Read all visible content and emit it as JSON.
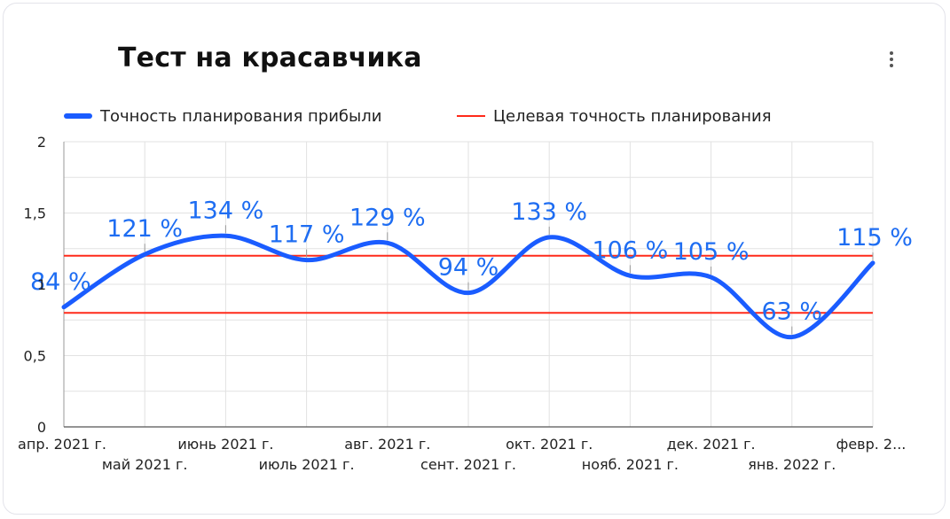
{
  "header": {
    "title": "Тест на красавчика",
    "menu_icon": "more-vert-icon"
  },
  "legend": {
    "items": [
      {
        "label": "Точность планирования прибыли",
        "color": "#1a5cff"
      },
      {
        "label": "Целевая точность планирования",
        "color": "#ff2a1a"
      }
    ]
  },
  "chart_data": {
    "type": "line",
    "title": "Тест на красавчика",
    "categories": [
      "апр. 2021 г.",
      "май 2021 г.",
      "июнь 2021 г.",
      "июль 2021 г.",
      "авг. 2021 г.",
      "сент. 2021 г.",
      "окт. 2021 г.",
      "нояб. 2021 г.",
      "дек. 2021 г.",
      "янв. 2022 г.",
      "февр. 2..."
    ],
    "series": [
      {
        "name": "Точность планирования прибыли",
        "color": "#1a5cff",
        "values": [
          0.84,
          1.21,
          1.34,
          1.17,
          1.29,
          0.94,
          1.33,
          1.06,
          1.05,
          0.63,
          1.15
        ],
        "data_labels": [
          "84 %",
          "121 %",
          "134 %",
          "117 %",
          "129 %",
          "94 %",
          "133 %",
          "106 %",
          "105 %",
          "63 %",
          "115 %"
        ]
      }
    ],
    "reference_lines": [
      {
        "name": "Целевая точность планирования",
        "color": "#ff2a1a",
        "values": [
          1.2,
          0.8
        ]
      }
    ],
    "y_ticks": [
      "0",
      "0,5",
      "1",
      "1,5",
      "2"
    ],
    "ylim": [
      0,
      2
    ],
    "grid": true,
    "legend_position": "top-left"
  }
}
